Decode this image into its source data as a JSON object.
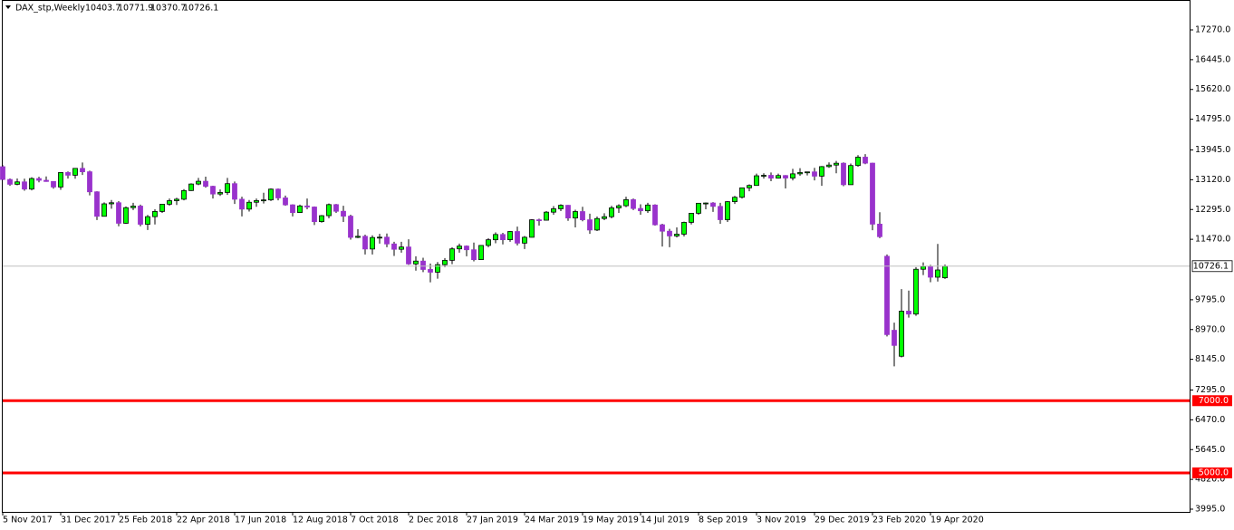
{
  "chart_data": {
    "type": "candlestick",
    "title": "DAX_stp,Weekly",
    "categories": [
      "5 Nov 2017",
      null,
      null,
      null,
      null,
      null,
      null,
      null,
      "31 Dec 2017",
      null,
      null,
      null,
      null,
      null,
      null,
      null,
      "25 Feb 2018",
      null,
      null,
      null,
      null,
      null,
      null,
      null,
      "22 Apr 2018",
      null,
      null,
      null,
      null,
      null,
      null,
      null,
      "17 Jun 2018",
      null,
      null,
      null,
      null,
      null,
      null,
      null,
      "12 Aug 2018",
      null,
      null,
      null,
      null,
      null,
      null,
      null,
      "7 Oct 2018",
      null,
      null,
      null,
      null,
      null,
      null,
      null,
      "2 Dec 2018",
      null,
      null,
      null,
      null,
      null,
      null,
      null,
      "27 Jan 2019",
      null,
      null,
      null,
      null,
      null,
      null,
      null,
      "24 Mar 2019",
      null,
      null,
      null,
      null,
      null,
      null,
      null,
      "19 May 2019",
      null,
      null,
      null,
      null,
      null,
      null,
      null,
      "14 Jul 2019",
      null,
      null,
      null,
      null,
      null,
      null,
      null,
      "8 Sep 2019",
      null,
      null,
      null,
      null,
      null,
      null,
      null,
      "3 Nov 2019",
      null,
      null,
      null,
      null,
      null,
      null,
      null,
      "29 Dec 2019",
      null,
      null,
      null,
      null,
      null,
      null,
      null,
      "23 Feb 2020",
      null,
      null,
      null,
      null,
      null,
      null,
      null,
      "19 Apr 2020",
      null,
      null
    ],
    "open": [
      13480,
      13127,
      12994,
      13060,
      12861,
      13153,
      13104,
      13072,
      12918,
      13319,
      13245,
      13434,
      13340,
      12785,
      12107,
      12452,
      12483,
      11914,
      12346,
      12390,
      11886,
      12097,
      12241,
      12442,
      12540,
      12580,
      12820,
      13001,
      13077,
      12938,
      12724,
      12767,
      13011,
      12580,
      12306,
      12496,
      12541,
      12561,
      12860,
      12616,
      12424,
      12211,
      12394,
      12364,
      11960,
      12124,
      12431,
      12246,
      12111,
      11523,
      11553,
      11201,
      11519,
      11529,
      11341,
      11193,
      11257,
      10788,
      10866,
      10634,
      10559,
      10767,
      10887,
      11205,
      11282,
      11180,
      10906,
      11300,
      11457,
      11603,
      11458,
      11686,
      11364,
      11526,
      12010,
      11999,
      12222,
      12315,
      12412,
      12060,
      12238,
      12011,
      11727,
      12045,
      12096,
      12340,
      12399,
      12568,
      12323,
      12260,
      12419,
      11872,
      11694,
      11563,
      11612,
      11939,
      12191,
      12468,
      12475,
      12381,
      12013,
      12512,
      12634,
      12895,
      12961,
      13229,
      13242,
      13164,
      13236,
      13167,
      13283,
      13319,
      13337,
      13219,
      13483,
      13526,
      13577,
      12982,
      13513,
      13745,
      13579,
      11890,
      11000,
      8950,
      8230,
      9480,
      9400,
      10640,
      10720,
      10420,
      10403.7
    ],
    "high": [
      13526,
      13155,
      13156,
      13149,
      13190,
      13201,
      13210,
      13075,
      13326,
      13350,
      13434,
      13597,
      13372,
      12800,
      12494,
      12560,
      12528,
      12380,
      12480,
      12430,
      12144,
      12300,
      12442,
      12598,
      12620,
      12860,
      13020,
      13170,
      13205,
      12953,
      12850,
      13170,
      13070,
      12650,
      12560,
      12600,
      12760,
      12880,
      12880,
      12680,
      12440,
      12430,
      12600,
      12380,
      12140,
      12460,
      12450,
      12400,
      12150,
      11750,
      11600,
      11580,
      11620,
      11630,
      11400,
      11400,
      11470,
      11000,
      10960,
      10800,
      10840,
      10950,
      11250,
      11350,
      11300,
      11380,
      11300,
      11500,
      11660,
      11650,
      11700,
      11820,
      11560,
      12030,
      12040,
      12250,
      12390,
      12440,
      12420,
      12290,
      12370,
      12180,
      12100,
      12190,
      12400,
      12440,
      12650,
      12600,
      12440,
      12480,
      12440,
      11900,
      11760,
      11800,
      11960,
      12200,
      12470,
      12490,
      12500,
      12480,
      12530,
      12670,
      12900,
      12990,
      13290,
      13300,
      13320,
      13290,
      13250,
      13420,
      13440,
      13340,
      13450,
      13500,
      13600,
      13640,
      13600,
      13570,
      13800,
      13830,
      13590,
      12220,
      11050,
      9160,
      10090,
      10050,
      10700,
      10830,
      10760,
      11340,
      10771.9
    ],
    "low": [
      13107,
      12952,
      12965,
      12817,
      12826,
      13048,
      13064,
      12871,
      12840,
      13150,
      13148,
      13253,
      12687,
      12003,
      12107,
      12318,
      11830,
      11900,
      12280,
      11831,
      11726,
      11880,
      12200,
      12400,
      12420,
      12550,
      12810,
      12970,
      12900,
      12600,
      12670,
      12700,
      12450,
      12104,
      12240,
      12370,
      12460,
      12530,
      12550,
      12400,
      12105,
      12200,
      12300,
      11865,
      11930,
      12050,
      12200,
      11950,
      11460,
      11500,
      11050,
      11050,
      11350,
      11250,
      11010,
      11100,
      10760,
      10600,
      10560,
      10279,
      10380,
      10700,
      10780,
      11100,
      11000,
      10860,
      10900,
      11250,
      11360,
      11330,
      11400,
      11300,
      11200,
      11520,
      11850,
      11990,
      12150,
      12250,
      11980,
      11800,
      11970,
      11620,
      11700,
      12000,
      12050,
      12200,
      12360,
      12280,
      12150,
      12200,
      11850,
      11270,
      11250,
      11520,
      11550,
      11880,
      12150,
      12300,
      12230,
      11900,
      11950,
      12450,
      12600,
      12800,
      12960,
      13150,
      13080,
      13150,
      12880,
      13100,
      13230,
      13240,
      13100,
      12950,
      13450,
      13300,
      12940,
      12980,
      13480,
      13550,
      11720,
      11500,
      8780,
      7950,
      8200,
      9300,
      9350,
      10480,
      10280,
      10300,
      10370.7
    ],
    "close": [
      13127,
      12994,
      13060,
      12861,
      13153,
      13104,
      13072,
      12918,
      13319,
      13245,
      13434,
      13340,
      12785,
      12107,
      12452,
      12483,
      11914,
      12346,
      12390,
      11886,
      12097,
      12241,
      12442,
      12540,
      12580,
      12820,
      13001,
      13077,
      12938,
      12724,
      12767,
      13011,
      12580,
      12306,
      12496,
      12541,
      12561,
      12860,
      12616,
      12424,
      12211,
      12394,
      12364,
      11960,
      12124,
      12431,
      12246,
      12111,
      11523,
      11553,
      11201,
      11519,
      11529,
      11341,
      11193,
      11257,
      10788,
      10866,
      10634,
      10559,
      10767,
      10887,
      11205,
      11282,
      11180,
      10906,
      11300,
      11457,
      11603,
      11458,
      11686,
      11364,
      11526,
      12010,
      11999,
      12222,
      12315,
      12412,
      12060,
      12238,
      12011,
      11727,
      12045,
      12096,
      12340,
      12399,
      12568,
      12323,
      12260,
      12419,
      11872,
      11694,
      11563,
      11612,
      11939,
      12191,
      12468,
      12475,
      12381,
      12013,
      12512,
      12634,
      12895,
      12961,
      13229,
      13242,
      13164,
      13236,
      13167,
      13283,
      13319,
      13337,
      13219,
      13483,
      13526,
      13577,
      12982,
      13513,
      13745,
      13579,
      11890,
      11542,
      8830,
      8530,
      9480,
      9400,
      10640,
      10720,
      10420,
      10620,
      10726.1
    ],
    "up_color": "#00ff00",
    "down_color": "#9932cc",
    "ylim": [
      3920,
      18098
    ],
    "yticks": [
      {
        "value": 3995,
        "label": "3995.0"
      },
      {
        "value": 4820,
        "label": "4820.0"
      },
      {
        "value": 5645,
        "label": "5645.0"
      },
      {
        "value": 6470,
        "label": "6470.0"
      },
      {
        "value": 7295,
        "label": "7295.0"
      },
      {
        "value": 8145,
        "label": "8145.0"
      },
      {
        "value": 8970,
        "label": "8970.0"
      },
      {
        "value": 9795,
        "label": "9795.0"
      },
      {
        "value": 11470,
        "label": "11470.0"
      },
      {
        "value": 12295,
        "label": "12295.0"
      },
      {
        "value": 13120,
        "label": "13120.0"
      },
      {
        "value": 13945,
        "label": "13945.0"
      },
      {
        "value": 14795,
        "label": "14795.0"
      },
      {
        "value": 15620,
        "label": "15620.0"
      },
      {
        "value": 16445,
        "label": "16445.0"
      },
      {
        "value": 17270,
        "label": "17270.0"
      }
    ],
    "reference_lines": [
      {
        "value": 7000,
        "label": "7000.0",
        "color": "#ff0000"
      },
      {
        "value": 5000,
        "label": "5000.0",
        "color": "#ff0000"
      }
    ],
    "grid": false
  }
}
